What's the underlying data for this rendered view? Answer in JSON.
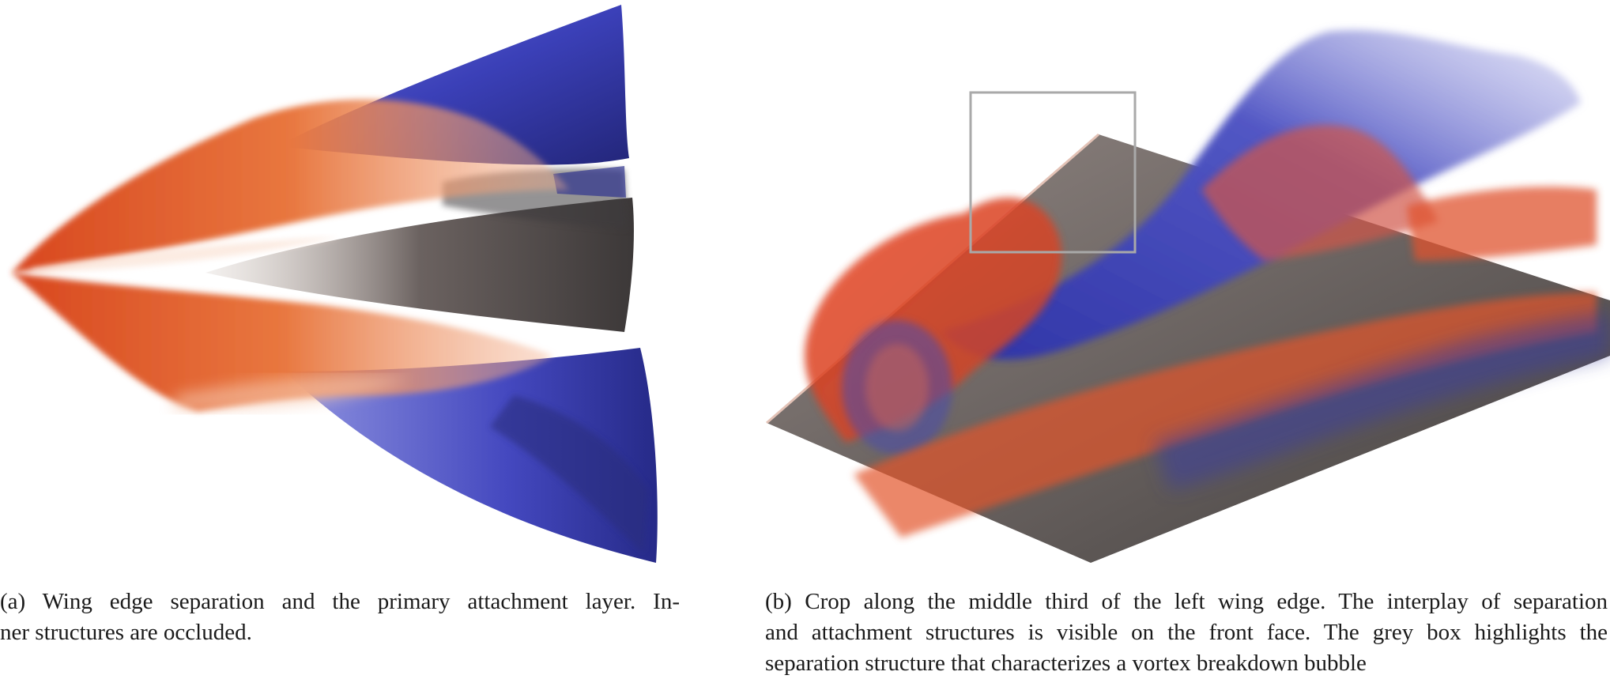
{
  "figure": {
    "panel_a": {
      "caption_lines": [
        "(a)  Wing edge separation and the primary attachment layer.  In-",
        "ner structures are occluded."
      ]
    },
    "panel_b": {
      "caption_lines": [
        "(b)  Crop along the middle third of the left wing edge. The interplay of separation",
        "and attachment structures is visible on the front face. The grey box highlights the",
        "separation structure that characterizes a vortex breakdown bubble"
      ],
      "highlight_box_color": "#a9a9a9"
    },
    "colors": {
      "separation": "#e2552a",
      "attachment": "#3a3fb0",
      "wing_surface": "#5a5552"
    }
  }
}
